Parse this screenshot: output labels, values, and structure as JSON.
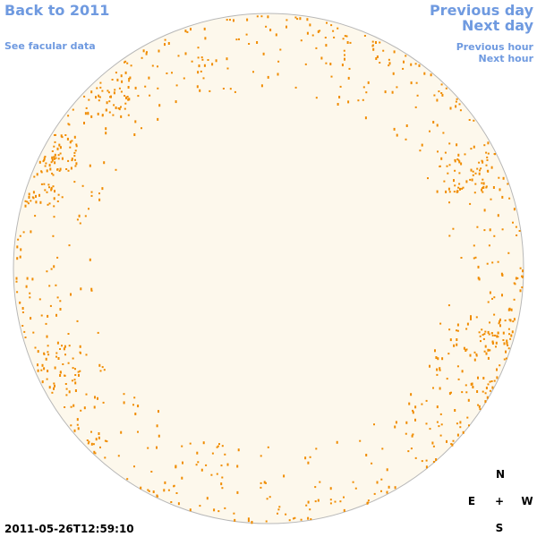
{
  "links": {
    "back": "Back to 2011",
    "facular": "See facular data",
    "previous_day": "Previous day",
    "next_day": "Next day",
    "previous_hour": "Previous hour",
    "next_hour": "Next hour"
  },
  "timestamp": "2011-05-26T12:59:10",
  "compass": {
    "north": "N",
    "east": "E",
    "center": "+",
    "west": "W",
    "south": "S"
  }
}
